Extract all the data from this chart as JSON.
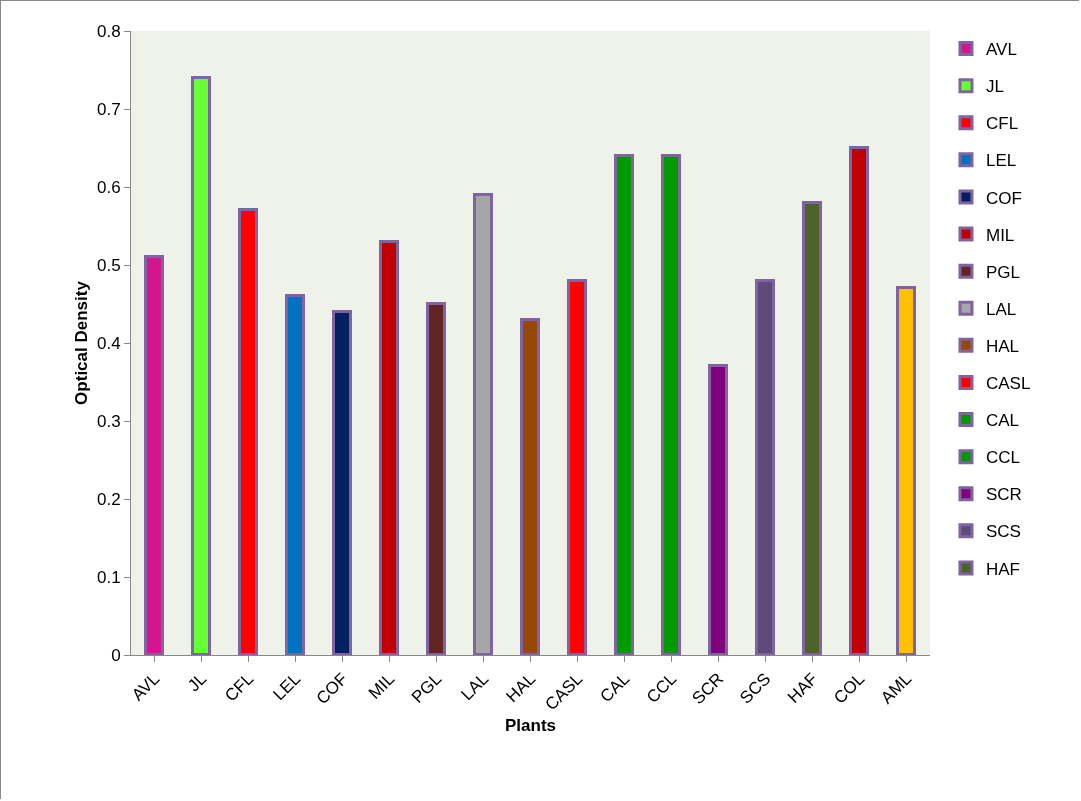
{
  "chart_data": {
    "type": "bar",
    "xlabel": "Plants",
    "ylabel": "Optical Density",
    "categories": [
      "AVL",
      "JL",
      "CFL",
      "LEL",
      "COF",
      "MIL",
      "PGL",
      "LAL",
      "HAL",
      "CASL",
      "CAL",
      "CCL",
      "SCR",
      "SCS",
      "HAF",
      "COL",
      "AML"
    ],
    "series": [
      {
        "name": "AVL",
        "color": "#d4168e",
        "values": [
          0.51,
          null,
          null,
          null,
          null,
          null,
          null,
          null,
          null,
          null,
          null,
          null,
          null,
          null,
          null,
          null,
          null
        ]
      },
      {
        "name": "JL",
        "color": "#66ff33",
        "values": [
          null,
          0.74,
          null,
          null,
          null,
          null,
          null,
          null,
          null,
          null,
          null,
          null,
          null,
          null,
          null,
          null,
          null
        ]
      },
      {
        "name": "CFL",
        "color": "#ff0000",
        "values": [
          null,
          null,
          0.57,
          null,
          null,
          null,
          null,
          null,
          null,
          null,
          null,
          null,
          null,
          null,
          null,
          null,
          null
        ]
      },
      {
        "name": "LEL",
        "color": "#0070c0",
        "values": [
          null,
          null,
          null,
          0.46,
          null,
          null,
          null,
          null,
          null,
          null,
          null,
          null,
          null,
          null,
          null,
          null,
          null
        ]
      },
      {
        "name": "COF",
        "color": "#002060",
        "values": [
          null,
          null,
          null,
          null,
          0.44,
          null,
          null,
          null,
          null,
          null,
          null,
          null,
          null,
          null,
          null,
          null,
          null
        ]
      },
      {
        "name": "MIL",
        "color": "#c00000",
        "values": [
          null,
          null,
          null,
          null,
          null,
          0.53,
          null,
          null,
          null,
          null,
          null,
          null,
          null,
          null,
          null,
          null,
          null
        ]
      },
      {
        "name": "PGL",
        "color": "#632523",
        "values": [
          null,
          null,
          null,
          null,
          null,
          null,
          0.45,
          null,
          null,
          null,
          null,
          null,
          null,
          null,
          null,
          null,
          null
        ]
      },
      {
        "name": "LAL",
        "color": "#a6a6a6",
        "values": [
          null,
          null,
          null,
          null,
          null,
          null,
          null,
          0.59,
          null,
          null,
          null,
          null,
          null,
          null,
          null,
          null,
          null
        ]
      },
      {
        "name": "HAL",
        "color": "#974706",
        "values": [
          null,
          null,
          null,
          null,
          null,
          null,
          null,
          null,
          0.43,
          null,
          null,
          null,
          null,
          null,
          null,
          null,
          null
        ]
      },
      {
        "name": "CASL",
        "color": "#ff0000",
        "values": [
          null,
          null,
          null,
          null,
          null,
          null,
          null,
          null,
          null,
          0.48,
          null,
          null,
          null,
          null,
          null,
          null,
          null
        ]
      },
      {
        "name": "CAL",
        "color": "#009900",
        "values": [
          null,
          null,
          null,
          null,
          null,
          null,
          null,
          null,
          null,
          null,
          0.64,
          null,
          null,
          null,
          null,
          null,
          null
        ]
      },
      {
        "name": "CCL",
        "color": "#009900",
        "values": [
          null,
          null,
          null,
          null,
          null,
          null,
          null,
          null,
          null,
          null,
          null,
          0.64,
          null,
          null,
          null,
          null,
          null
        ]
      },
      {
        "name": "SCR",
        "color": "#800080",
        "values": [
          null,
          null,
          null,
          null,
          null,
          null,
          null,
          null,
          null,
          null,
          null,
          null,
          0.37,
          null,
          null,
          null,
          null
        ]
      },
      {
        "name": "SCS",
        "color": "#604a7b",
        "values": [
          null,
          null,
          null,
          null,
          null,
          null,
          null,
          null,
          null,
          null,
          null,
          null,
          null,
          0.48,
          null,
          null,
          null
        ]
      },
      {
        "name": "HAF",
        "color": "#4f6228",
        "values": [
          null,
          null,
          null,
          null,
          null,
          null,
          null,
          null,
          null,
          null,
          null,
          null,
          null,
          null,
          0.58,
          null,
          null
        ]
      },
      {
        "color": "#c00000",
        "values": [
          null,
          null,
          null,
          null,
          null,
          null,
          null,
          null,
          null,
          null,
          null,
          null,
          null,
          null,
          null,
          0.65,
          null
        ]
      },
      {
        "color": "#ffc000",
        "values": [
          null,
          null,
          null,
          null,
          null,
          null,
          null,
          null,
          null,
          null,
          null,
          null,
          null,
          null,
          null,
          null,
          0.47
        ]
      }
    ],
    "ylim": [
      0,
      0.8
    ],
    "yticks": [
      0,
      0.1,
      0.2,
      0.3,
      0.4,
      0.5,
      0.6,
      0.7,
      0.8
    ],
    "grid": false,
    "legend": "right"
  }
}
